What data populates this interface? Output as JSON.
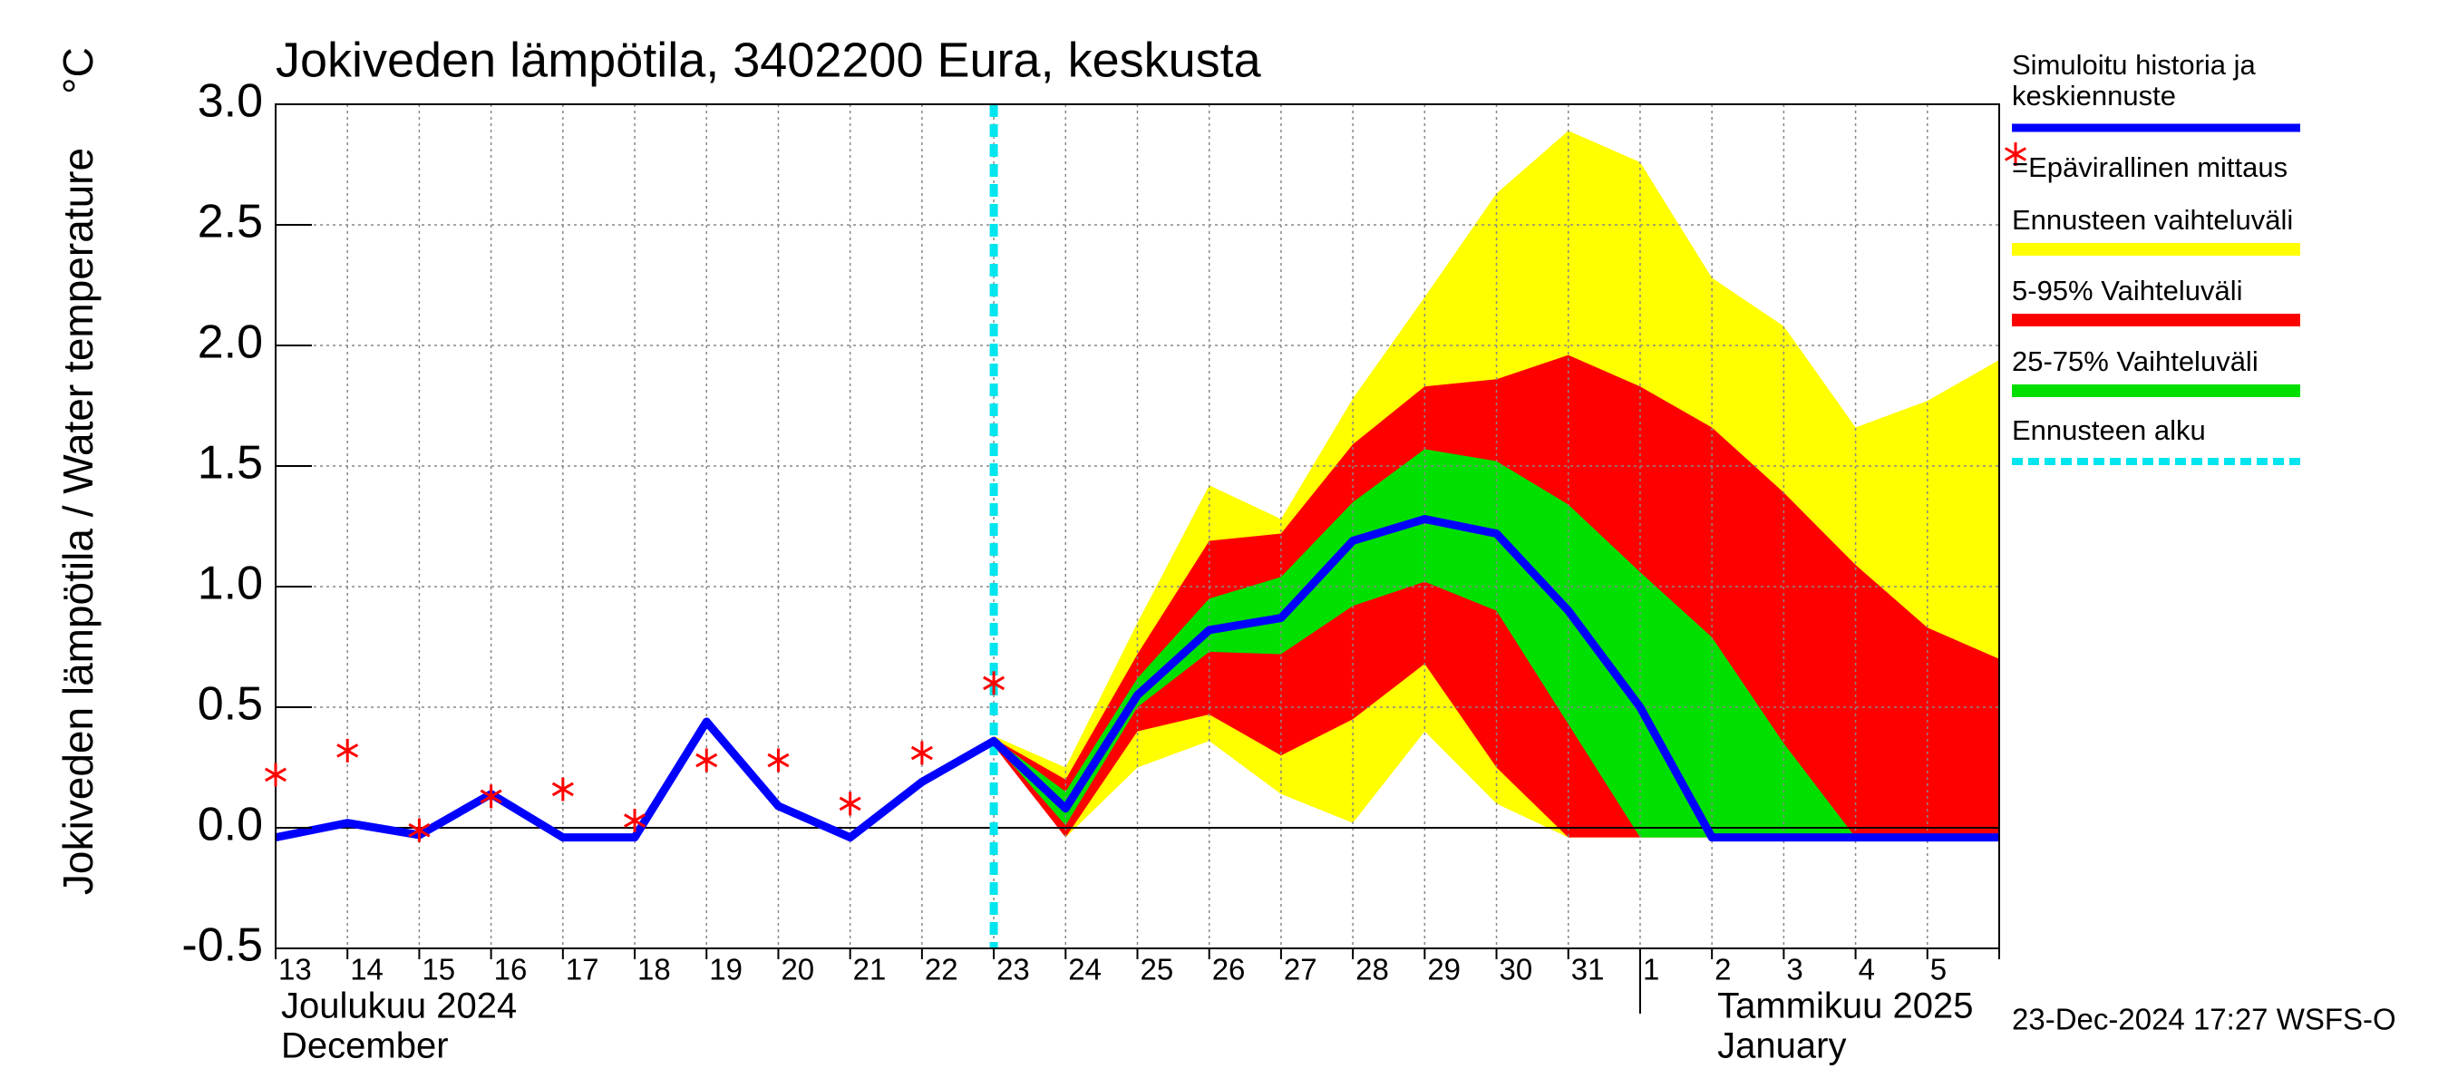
{
  "chart_data": {
    "type": "line",
    "title": "Jokiveden lämpötila, 3402200 Eura, keskusta",
    "y_label": "Jokiveden lämpötila / Water temperature",
    "y_unit": "°C",
    "categories": [
      "13",
      "14",
      "15",
      "16",
      "17",
      "18",
      "19",
      "20",
      "21",
      "22",
      "23",
      "24",
      "25",
      "26",
      "27",
      "28",
      "29",
      "30",
      "31",
      "1",
      "2",
      "3",
      "4",
      "5",
      null
    ],
    "month_labels": [
      {
        "at": "13",
        "lines": [
          "Joulukuu  2024",
          "December"
        ]
      },
      {
        "at": "2",
        "lines": [
          "Tammikuu  2025",
          "January"
        ]
      }
    ],
    "ylim": [
      -0.5,
      3.0
    ],
    "yticks": [
      -0.5,
      {
        "value": 0,
        "label": "0.0"
      },
      0.5,
      {
        "value": 1,
        "label": "1.0"
      },
      1.5,
      {
        "value": 2,
        "label": "2.0"
      },
      2.5,
      {
        "value": 3,
        "label": "3.0"
      }
    ],
    "grid": true,
    "series": [
      {
        "name": "Simuloitu historia ja keskiennuste",
        "color": "#0000ff",
        "values": [
          -0.04,
          0.02,
          -0.03,
          0.14,
          -0.04,
          -0.04,
          0.44,
          0.09,
          -0.04,
          0.19,
          0.36,
          0.08,
          0.55,
          0.82,
          0.87,
          1.19,
          1.28,
          1.22,
          0.9,
          0.5,
          -0.04,
          -0.04,
          -0.04,
          -0.04,
          -0.04
        ]
      }
    ],
    "markers": {
      "name": "=Epävirallinen mittaus",
      "color": "#ff0000",
      "values": [
        0.22,
        0.32,
        -0.01,
        0.13,
        0.16,
        0.03,
        0.28,
        0.28,
        0.1,
        0.31,
        0.6,
        null,
        null,
        null,
        null,
        null,
        null,
        null,
        null,
        null,
        null,
        null,
        null,
        null,
        null
      ]
    },
    "bands": [
      {
        "name": "Ennusteen vaihteluväli",
        "color": "#ffff00",
        "upper": [
          null,
          null,
          null,
          null,
          null,
          null,
          null,
          null,
          null,
          null,
          0.38,
          0.25,
          0.85,
          1.42,
          1.28,
          1.78,
          2.2,
          2.63,
          2.89,
          2.76,
          2.28,
          2.08,
          1.66,
          1.77,
          1.94
        ],
        "lower": [
          null,
          null,
          null,
          null,
          null,
          null,
          null,
          null,
          null,
          null,
          0.36,
          -0.04,
          0.25,
          0.36,
          0.14,
          0.02,
          0.4,
          0.1,
          -0.04,
          -0.04,
          -0.04,
          -0.04,
          -0.04,
          -0.04,
          -0.04
        ]
      },
      {
        "name": "5-95% Vaihteluväli",
        "color": "#ff0000",
        "upper": [
          null,
          null,
          null,
          null,
          null,
          null,
          null,
          null,
          null,
          null,
          0.37,
          0.2,
          0.72,
          1.19,
          1.22,
          1.59,
          1.83,
          1.86,
          1.96,
          1.83,
          1.66,
          1.39,
          1.09,
          0.83,
          0.7
        ],
        "lower": [
          null,
          null,
          null,
          null,
          null,
          null,
          null,
          null,
          null,
          null,
          0.34,
          -0.04,
          0.4,
          0.47,
          0.3,
          0.45,
          0.68,
          0.25,
          -0.04,
          -0.04,
          -0.04,
          -0.04,
          -0.04,
          -0.04,
          -0.04
        ]
      },
      {
        "name": "25-75% Vaihteluväli",
        "color": "#00e000",
        "upper": [
          null,
          null,
          null,
          null,
          null,
          null,
          null,
          null,
          null,
          null,
          0.37,
          0.15,
          0.62,
          0.95,
          1.04,
          1.35,
          1.57,
          1.52,
          1.34,
          1.06,
          0.79,
          0.35,
          -0.04,
          -0.04,
          -0.04
        ],
        "lower": [
          null,
          null,
          null,
          null,
          null,
          null,
          null,
          null,
          null,
          null,
          0.35,
          0.01,
          0.5,
          0.73,
          0.72,
          0.92,
          1.02,
          0.9,
          0.43,
          -0.04,
          -0.04,
          -0.04,
          -0.04,
          -0.04,
          -0.04
        ]
      }
    ],
    "forecast_start": {
      "name": "Ennusteen alku",
      "color": "#00e5ee",
      "at": "23"
    },
    "timestamp": "23-Dec-2024 17:27 WSFS-O"
  }
}
